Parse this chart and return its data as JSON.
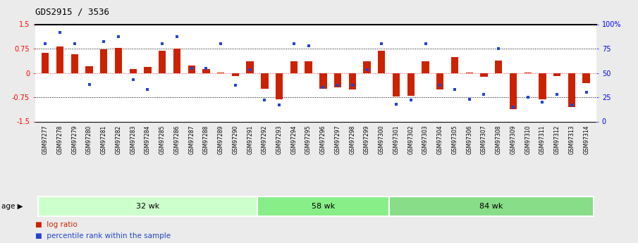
{
  "title": "GDS2915 / 3536",
  "samples": [
    "GSM97277",
    "GSM97278",
    "GSM97279",
    "GSM97280",
    "GSM97281",
    "GSM97282",
    "GSM97283",
    "GSM97284",
    "GSM97285",
    "GSM97286",
    "GSM97287",
    "GSM97288",
    "GSM97289",
    "GSM97290",
    "GSM97291",
    "GSM97292",
    "GSM97293",
    "GSM97294",
    "GSM97295",
    "GSM97296",
    "GSM97297",
    "GSM97298",
    "GSM97299",
    "GSM97300",
    "GSM97301",
    "GSM97302",
    "GSM97303",
    "GSM97304",
    "GSM97305",
    "GSM97306",
    "GSM97307",
    "GSM97308",
    "GSM97309",
    "GSM97310",
    "GSM97311",
    "GSM97312",
    "GSM97313",
    "GSM97314"
  ],
  "log_ratio": [
    0.62,
    0.82,
    0.58,
    0.2,
    0.72,
    0.78,
    0.12,
    0.18,
    0.68,
    0.75,
    0.22,
    0.12,
    0.02,
    -0.1,
    0.35,
    -0.48,
    -0.82,
    0.35,
    0.35,
    -0.48,
    -0.45,
    -0.5,
    0.35,
    0.68,
    -0.72,
    -0.7,
    0.35,
    -0.5,
    0.5,
    0.02,
    -0.12,
    0.38,
    -1.12,
    0.02,
    -0.82,
    -0.1,
    -1.05,
    -0.32
  ],
  "percentile": [
    0.8,
    0.92,
    0.8,
    0.38,
    0.82,
    0.87,
    0.43,
    0.33,
    0.8,
    0.87,
    0.55,
    0.55,
    0.8,
    0.37,
    0.53,
    0.22,
    0.17,
    0.8,
    0.78,
    0.35,
    0.37,
    0.37,
    0.53,
    0.8,
    0.18,
    0.22,
    0.8,
    0.37,
    0.33,
    0.23,
    0.28,
    0.75,
    0.15,
    0.25,
    0.2,
    0.28,
    0.17,
    0.3
  ],
  "groups": [
    {
      "label": "32 wk",
      "start": 0,
      "end": 15,
      "color": "#ccffcc"
    },
    {
      "label": "58 wk",
      "start": 15,
      "end": 24,
      "color": "#88ee88"
    },
    {
      "label": "84 wk",
      "start": 24,
      "end": 38,
      "color": "#88dd88"
    }
  ],
  "bar_color": "#cc2200",
  "dot_color": "#2244cc",
  "ylim_min": -1.5,
  "ylim_max": 1.5,
  "yticks_left": [
    -1.5,
    -0.75,
    0.0,
    0.75,
    1.5
  ],
  "ytick_labels_left": [
    "-1.5",
    "-0.75",
    "0",
    "0.75",
    "1.5"
  ],
  "yticks_right_pct": [
    0,
    25,
    50,
    75,
    100
  ],
  "ytick_labels_right": [
    "0",
    "25",
    "50",
    "75",
    "100%"
  ],
  "background_color": "#ebebeb",
  "plot_bg_color": "#ffffff",
  "age_label": "age",
  "legend_log_ratio": "log ratio",
  "legend_percentile": "percentile rank within the sample"
}
